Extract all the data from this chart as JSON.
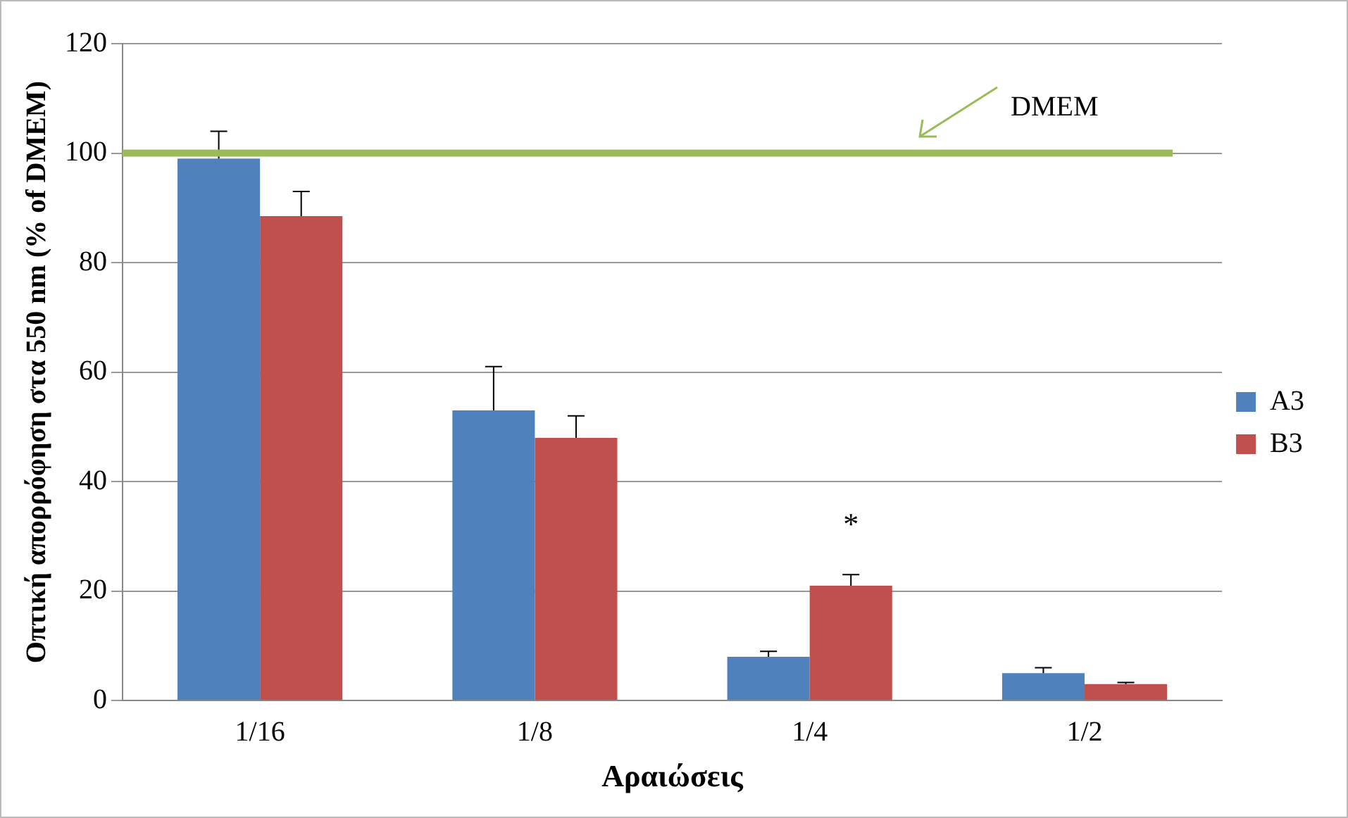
{
  "chart_data": {
    "type": "bar",
    "xlabel": "Αραιώσεις",
    "ylabel": "Οπτική απορρόφηση στα 550 nm (% of DMEM)",
    "categories": [
      "1/16",
      "1/8",
      "1/4",
      "1/2"
    ],
    "series": [
      {
        "name": "A3",
        "color": "#4f81bd",
        "values": [
          99,
          53,
          8,
          5
        ],
        "errors": [
          [
            99,
            104
          ],
          [
            53,
            61
          ],
          [
            8,
            9
          ],
          [
            5,
            6
          ]
        ]
      },
      {
        "name": "B3",
        "color": "#c0504d",
        "values": [
          88.5,
          48,
          21,
          3
        ],
        "errors": [
          [
            88.5,
            93
          ],
          [
            48,
            52
          ],
          [
            21,
            23
          ],
          [
            3,
            3.3
          ]
        ]
      }
    ],
    "ylim": [
      0,
      120
    ],
    "yticks": [
      0,
      20,
      40,
      60,
      80,
      100,
      120
    ],
    "grid": "y",
    "legend": "right",
    "ref_lines": [
      {
        "axis": "y",
        "value": 100,
        "label": "DMEM",
        "color": "#9bbb59"
      }
    ],
    "annotations": [
      {
        "text": "*",
        "x": "1/4",
        "y": 21
      }
    ]
  }
}
